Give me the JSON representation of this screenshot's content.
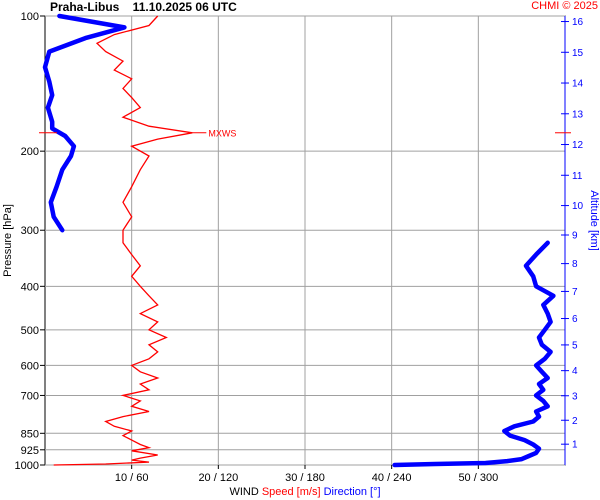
{
  "header": {
    "title": "Praha-Libus    11.10.2025 06 UTC",
    "credit": "CHMI © 2025"
  },
  "chart_data": {
    "type": "line",
    "station": "Praha-Libus",
    "datetime": "11.10.2025 06 UTC",
    "y_left_label": "Pressure [hPa]",
    "y_left_ticks": [
      100,
      200,
      300,
      400,
      500,
      600,
      700,
      850,
      925,
      1000
    ],
    "ylim_pressure": [
      1000,
      100
    ],
    "y_right_label": "Altitude [km]",
    "y_right_ticks": [
      1,
      2,
      3,
      4,
      5,
      6,
      7,
      8,
      9,
      10,
      11,
      12,
      13,
      14,
      15,
      16
    ],
    "x_label_parts": {
      "prefix": "WIND",
      "speed": "Speed [m/s]",
      "direction": "Direction [°]"
    },
    "x_ticks": [
      "10 / 60",
      "20 / 120",
      "30 / 180",
      "40 / 240",
      "50 / 300"
    ],
    "xlim_speed": [
      0,
      60
    ],
    "xlim_direction": [
      0,
      360
    ],
    "colors": {
      "speed": "#ff0000",
      "direction": "#0000ff",
      "grid": "#a0a0a0",
      "axes": "#000000"
    },
    "annotation": {
      "label": "MXWS",
      "pressure": 182,
      "speed": 17
    },
    "series": [
      {
        "name": "Speed [m/s]",
        "pressure": [
          1000,
          995,
          985,
          975,
          965,
          950,
          930,
          915,
          900,
          880,
          860,
          840,
          820,
          800,
          780,
          760,
          740,
          720,
          700,
          680,
          660,
          640,
          620,
          600,
          580,
          560,
          540,
          520,
          500,
          480,
          460,
          440,
          420,
          400,
          380,
          360,
          340,
          320,
          300,
          280,
          260,
          240,
          220,
          205,
          195,
          188,
          182,
          176,
          168,
          160,
          152,
          145,
          138,
          132,
          126,
          120,
          115,
          110,
          105,
          100
        ],
        "values": [
          1,
          7,
          12,
          10,
          11,
          13,
          10,
          12,
          11,
          10,
          9,
          10,
          8,
          7,
          9,
          12,
          10,
          11,
          9,
          12,
          11,
          13,
          11,
          10,
          12,
          13,
          12,
          14,
          12,
          13,
          11,
          13,
          12,
          11,
          10,
          11,
          10,
          9,
          9,
          10,
          9,
          10,
          11,
          12,
          10,
          13,
          17,
          12,
          9,
          11,
          10,
          9,
          10,
          8,
          9,
          7,
          6,
          8,
          12,
          13
        ]
      },
      {
        "name": "Direction [°]",
        "pressure": [
          1000,
          995,
          990,
          980,
          970,
          955,
          940,
          920,
          900,
          880,
          860,
          840,
          820,
          800,
          780,
          760,
          740,
          720,
          700,
          680,
          660,
          640,
          620,
          600,
          580,
          560,
          540,
          520,
          500,
          480,
          460,
          440,
          420,
          400,
          380,
          360,
          340,
          320,
          300,
          280,
          260,
          240,
          220,
          205,
          195,
          185,
          178,
          172,
          160,
          150,
          140,
          130,
          120,
          112,
          106,
          100
        ],
        "values": [
          242,
          270,
          305,
          320,
          330,
          335,
          340,
          342,
          338,
          332,
          322,
          318,
          325,
          338,
          342,
          340,
          348,
          345,
          340,
          345,
          342,
          348,
          344,
          340,
          346,
          350,
          344,
          342,
          346,
          350,
          348,
          345,
          352,
          340,
          338,
          333,
          340,
          348,
          12,
          6,
          4,
          8,
          12,
          18,
          20,
          14,
          5,
          5,
          2,
          5,
          3,
          0,
          3,
          28,
          55,
          10
        ]
      }
    ]
  }
}
